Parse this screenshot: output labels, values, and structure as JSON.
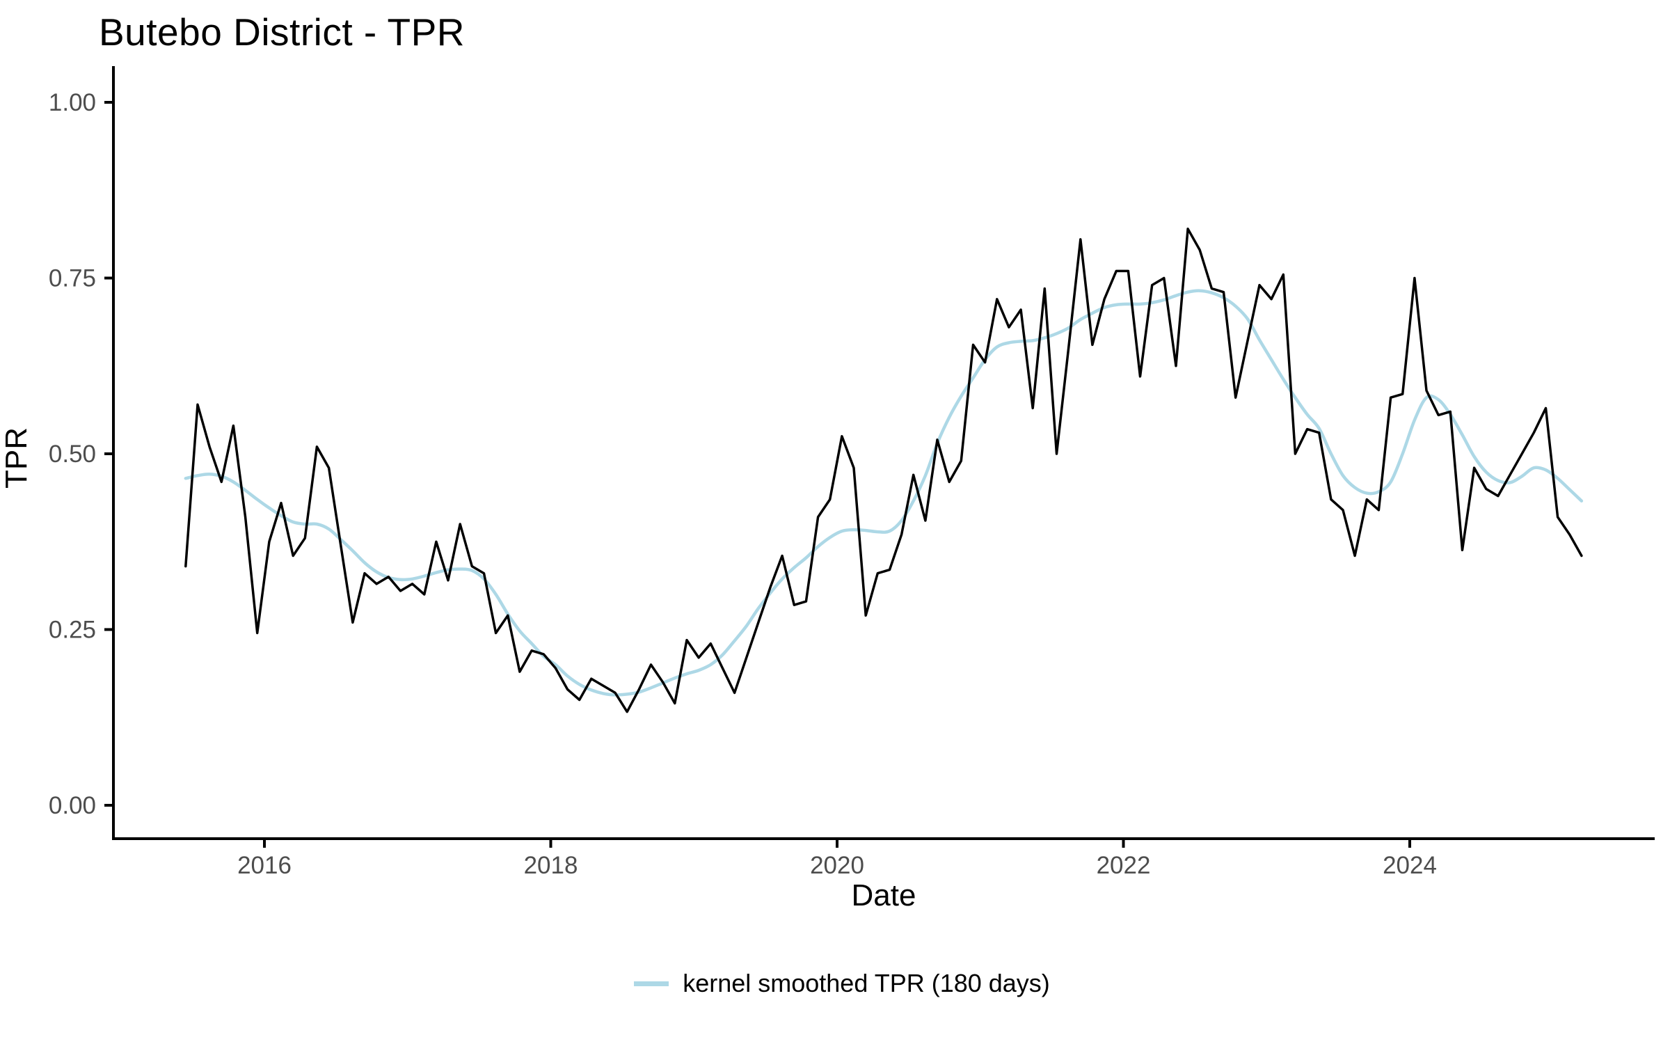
{
  "page": {
    "background": "#ffffff"
  },
  "chart_data": {
    "type": "line",
    "title": "Butebo District - TPR",
    "xlabel": "Date",
    "ylabel": "TPR",
    "grid": "off",
    "x_axis": {
      "tick_labels": [
        "2016",
        "2018",
        "2020",
        "2022",
        "2024"
      ],
      "tick_month_index": [
        0,
        24,
        48,
        72,
        96
      ]
    },
    "y_axis": {
      "tick_labels": [
        "0.00",
        "0.25",
        "0.50",
        "0.75",
        "1.00"
      ],
      "tick_values": [
        0,
        0.25,
        0.5,
        0.75,
        1.0
      ],
      "range": [
        0,
        1
      ]
    },
    "legend": {
      "position": "bottom",
      "entries": [
        {
          "label": "kernel smoothed TPR (180 days)",
          "color": "#add8e6"
        }
      ]
    },
    "x_start": "2015-06",
    "x_frequency": "monthly",
    "series": [
      {
        "name": "TPR",
        "color": "#000000",
        "stroke_width": 3.5,
        "values": [
          0.34,
          0.57,
          0.51,
          0.46,
          0.54,
          0.41,
          0.245,
          0.375,
          0.43,
          0.355,
          0.38,
          0.51,
          0.48,
          0.37,
          0.26,
          0.33,
          0.315,
          0.325,
          0.305,
          0.315,
          0.3,
          0.375,
          0.32,
          0.4,
          0.34,
          0.33,
          0.245,
          0.27,
          0.19,
          0.22,
          0.215,
          0.195,
          0.165,
          0.15,
          0.18,
          0.17,
          0.16,
          0.133,
          0.165,
          0.2,
          0.175,
          0.145,
          0.235,
          0.21,
          0.23,
          0.195,
          0.16,
          0.21,
          0.26,
          0.31,
          0.355,
          0.285,
          0.29,
          0.41,
          0.435,
          0.525,
          0.48,
          0.27,
          0.33,
          0.335,
          0.385,
          0.47,
          0.405,
          0.52,
          0.46,
          0.49,
          0.655,
          0.63,
          0.72,
          0.68,
          0.705,
          0.565,
          0.735,
          0.5,
          0.65,
          0.805,
          0.655,
          0.72,
          0.76,
          0.76,
          0.61,
          0.74,
          0.75,
          0.625,
          0.82,
          0.79,
          0.735,
          0.73,
          0.58,
          0.66,
          0.74,
          0.72,
          0.755,
          0.5,
          0.535,
          0.53,
          0.435,
          0.42,
          0.355,
          0.435,
          0.42,
          0.58,
          0.585,
          0.75,
          0.59,
          0.555,
          0.56,
          0.363,
          0.48,
          0.45,
          0.44,
          0.47,
          0.5,
          0.53,
          0.565,
          0.41,
          0.385,
          0.355
        ]
      },
      {
        "name": "kernel smoothed TPR (180 days)",
        "color": "#add8e6",
        "stroke_width": 4.5,
        "values": [
          0.465,
          0.469,
          0.471,
          0.468,
          0.46,
          0.448,
          0.435,
          0.423,
          0.412,
          0.403,
          0.4,
          0.4,
          0.393,
          0.378,
          0.362,
          0.345,
          0.332,
          0.324,
          0.321,
          0.322,
          0.326,
          0.331,
          0.335,
          0.336,
          0.334,
          0.322,
          0.3,
          0.272,
          0.248,
          0.23,
          0.212,
          0.2,
          0.184,
          0.172,
          0.164,
          0.159,
          0.157,
          0.158,
          0.161,
          0.167,
          0.174,
          0.181,
          0.187,
          0.192,
          0.2,
          0.214,
          0.234,
          0.255,
          0.28,
          0.302,
          0.322,
          0.338,
          0.352,
          0.368,
          0.381,
          0.39,
          0.392,
          0.391,
          0.389,
          0.39,
          0.405,
          0.433,
          0.469,
          0.515,
          0.552,
          0.582,
          0.608,
          0.634,
          0.652,
          0.658,
          0.66,
          0.661,
          0.665,
          0.671,
          0.679,
          0.691,
          0.7,
          0.708,
          0.712,
          0.713,
          0.713,
          0.715,
          0.719,
          0.725,
          0.73,
          0.732,
          0.729,
          0.722,
          0.71,
          0.692,
          0.662,
          0.634,
          0.606,
          0.58,
          0.556,
          0.536,
          0.5,
          0.469,
          0.452,
          0.444,
          0.446,
          0.46,
          0.5,
          0.548,
          0.58,
          0.577,
          0.556,
          0.527,
          0.496,
          0.474,
          0.462,
          0.459,
          0.468,
          0.48,
          0.477,
          0.465,
          0.449,
          0.433
        ]
      }
    ]
  }
}
